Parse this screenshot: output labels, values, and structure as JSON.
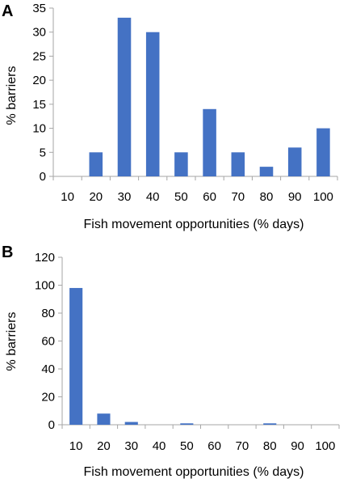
{
  "chart_data": [
    {
      "panel": "A",
      "type": "bar",
      "categories": [
        "10",
        "20",
        "30",
        "40",
        "50",
        "60",
        "70",
        "80",
        "90",
        "100"
      ],
      "values": [
        0,
        5,
        33,
        30,
        5,
        14,
        5,
        2,
        6,
        10
      ],
      "yticks": [
        "0",
        "5",
        "10",
        "15",
        "20",
        "25",
        "30",
        "35"
      ],
      "xlabel": "Fish movement opportunities (% days)",
      "ylabel": "% barriers",
      "ylim": [
        0,
        35
      ],
      "grid": false,
      "legend": "none",
      "bar_color": "#4472c4"
    },
    {
      "panel": "B",
      "type": "bar",
      "categories": [
        "10",
        "20",
        "30",
        "40",
        "50",
        "60",
        "70",
        "80",
        "90",
        "100"
      ],
      "values": [
        98,
        8,
        2,
        0,
        1,
        0,
        0,
        1,
        0,
        0
      ],
      "yticks": [
        "0",
        "20",
        "40",
        "60",
        "80",
        "100",
        "120"
      ],
      "xlabel": "Fish movement opportunities (% days)",
      "ylabel": "% barriers",
      "ylim": [
        0,
        120
      ],
      "grid": false,
      "legend": "none",
      "bar_color": "#4472c4"
    }
  ]
}
